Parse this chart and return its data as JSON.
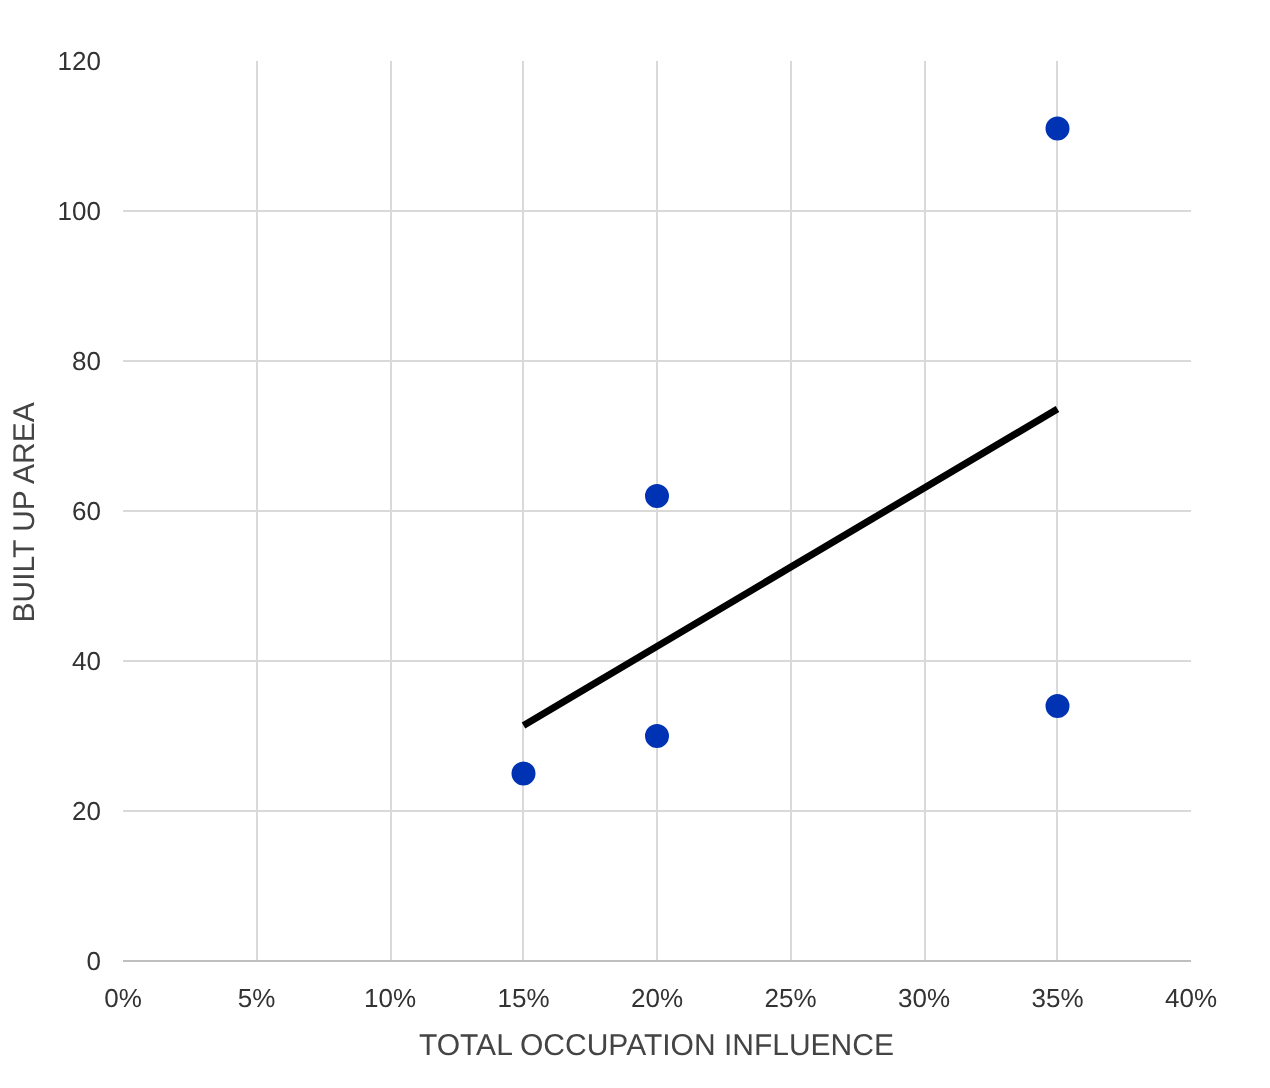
{
  "chart_data": {
    "type": "scatter",
    "xlabel": "TOTAL OCCUPATION INFLUENCE",
    "ylabel": "BUILT UP AREA",
    "series": [
      {
        "color": "#0033b4",
        "marker": "circle",
        "x": [
          15,
          20,
          20,
          35,
          35
        ],
        "values": [
          25,
          30,
          62,
          34,
          111
        ]
      },
      {
        "type": "line",
        "color": "#000000",
        "marker": "none",
        "x": [
          15,
          35
        ],
        "values": [
          31.4,
          73.6
        ]
      }
    ],
    "xlim": [
      0,
      40
    ],
    "ylim": [
      0,
      120
    ],
    "xticks": [
      {
        "value": 0,
        "label": "0%"
      },
      {
        "value": 5,
        "label": "5%"
      },
      {
        "value": 10,
        "label": "10%"
      },
      {
        "value": 15,
        "label": "15%"
      },
      {
        "value": 20,
        "label": "20%"
      },
      {
        "value": 25,
        "label": "25%"
      },
      {
        "value": 30,
        "label": "30%"
      },
      {
        "value": 35,
        "label": "35%"
      },
      {
        "value": 40,
        "label": "40%"
      }
    ],
    "yticks": [
      0,
      20,
      40,
      60,
      80,
      100,
      120
    ],
    "grid": true
  }
}
